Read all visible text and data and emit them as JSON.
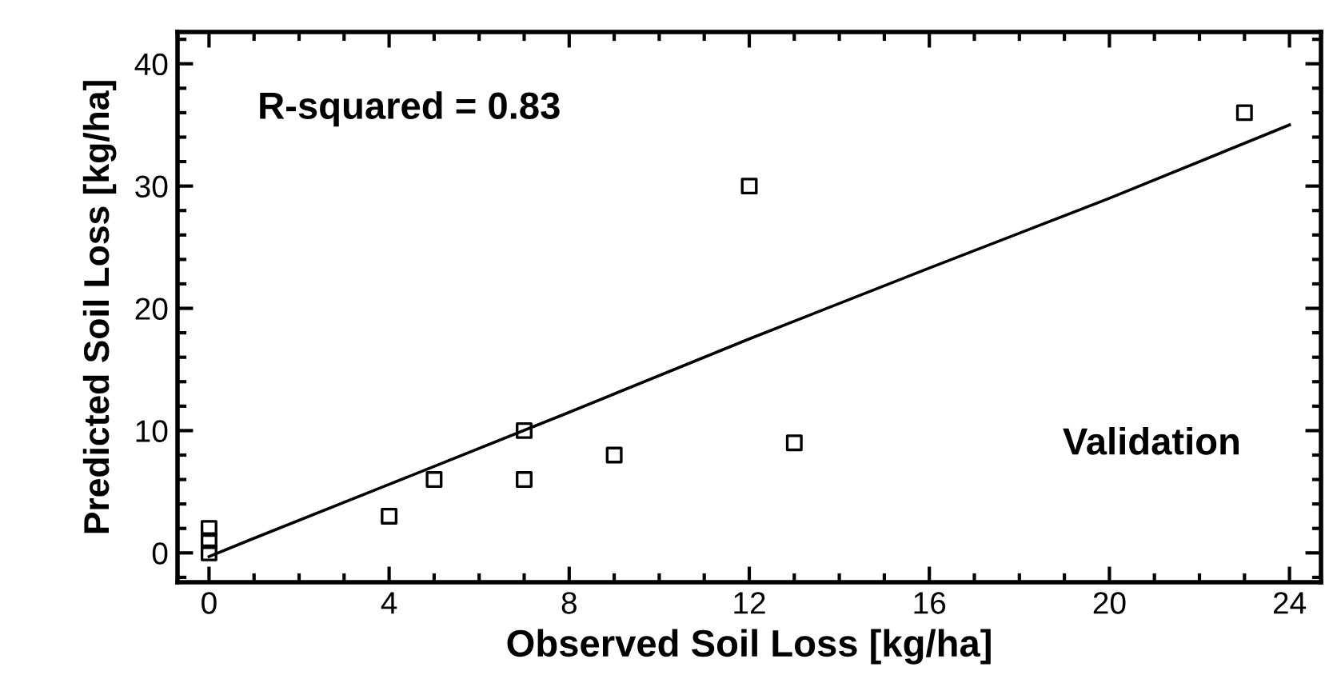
{
  "chart_data": {
    "type": "scatter",
    "xlabel": "Observed Soil Loss [kg/ha]",
    "ylabel": "Predicted Soil Loss [kg/ha]",
    "series": [
      {
        "color": "#000000",
        "marker": "square",
        "x": [
          0,
          0,
          0,
          4,
          5,
          7,
          7,
          9,
          12,
          13,
          23
        ],
        "values": [
          0,
          1,
          2,
          3,
          6,
          6,
          10,
          8,
          30,
          9,
          36
        ]
      },
      {
        "type": "line",
        "color": "#000000",
        "line_style": "solid",
        "x": [
          0,
          1,
          4,
          8,
          12,
          16,
          20,
          24
        ],
        "values": [
          -0.3,
          1.2,
          5.6,
          11.5,
          17.5,
          23.3,
          29.0,
          35.0
        ]
      }
    ],
    "annotations": [
      "R-squared = 0.83",
      "Validation"
    ],
    "xlim": [
      -0.7,
      24.7
    ],
    "ylim": [
      -2.4,
      42.6
    ],
    "xticks": [
      0,
      4,
      8,
      12,
      16,
      20,
      24
    ],
    "yticks": [
      0,
      10,
      20,
      30,
      40
    ],
    "grid": false,
    "legend": false
  }
}
